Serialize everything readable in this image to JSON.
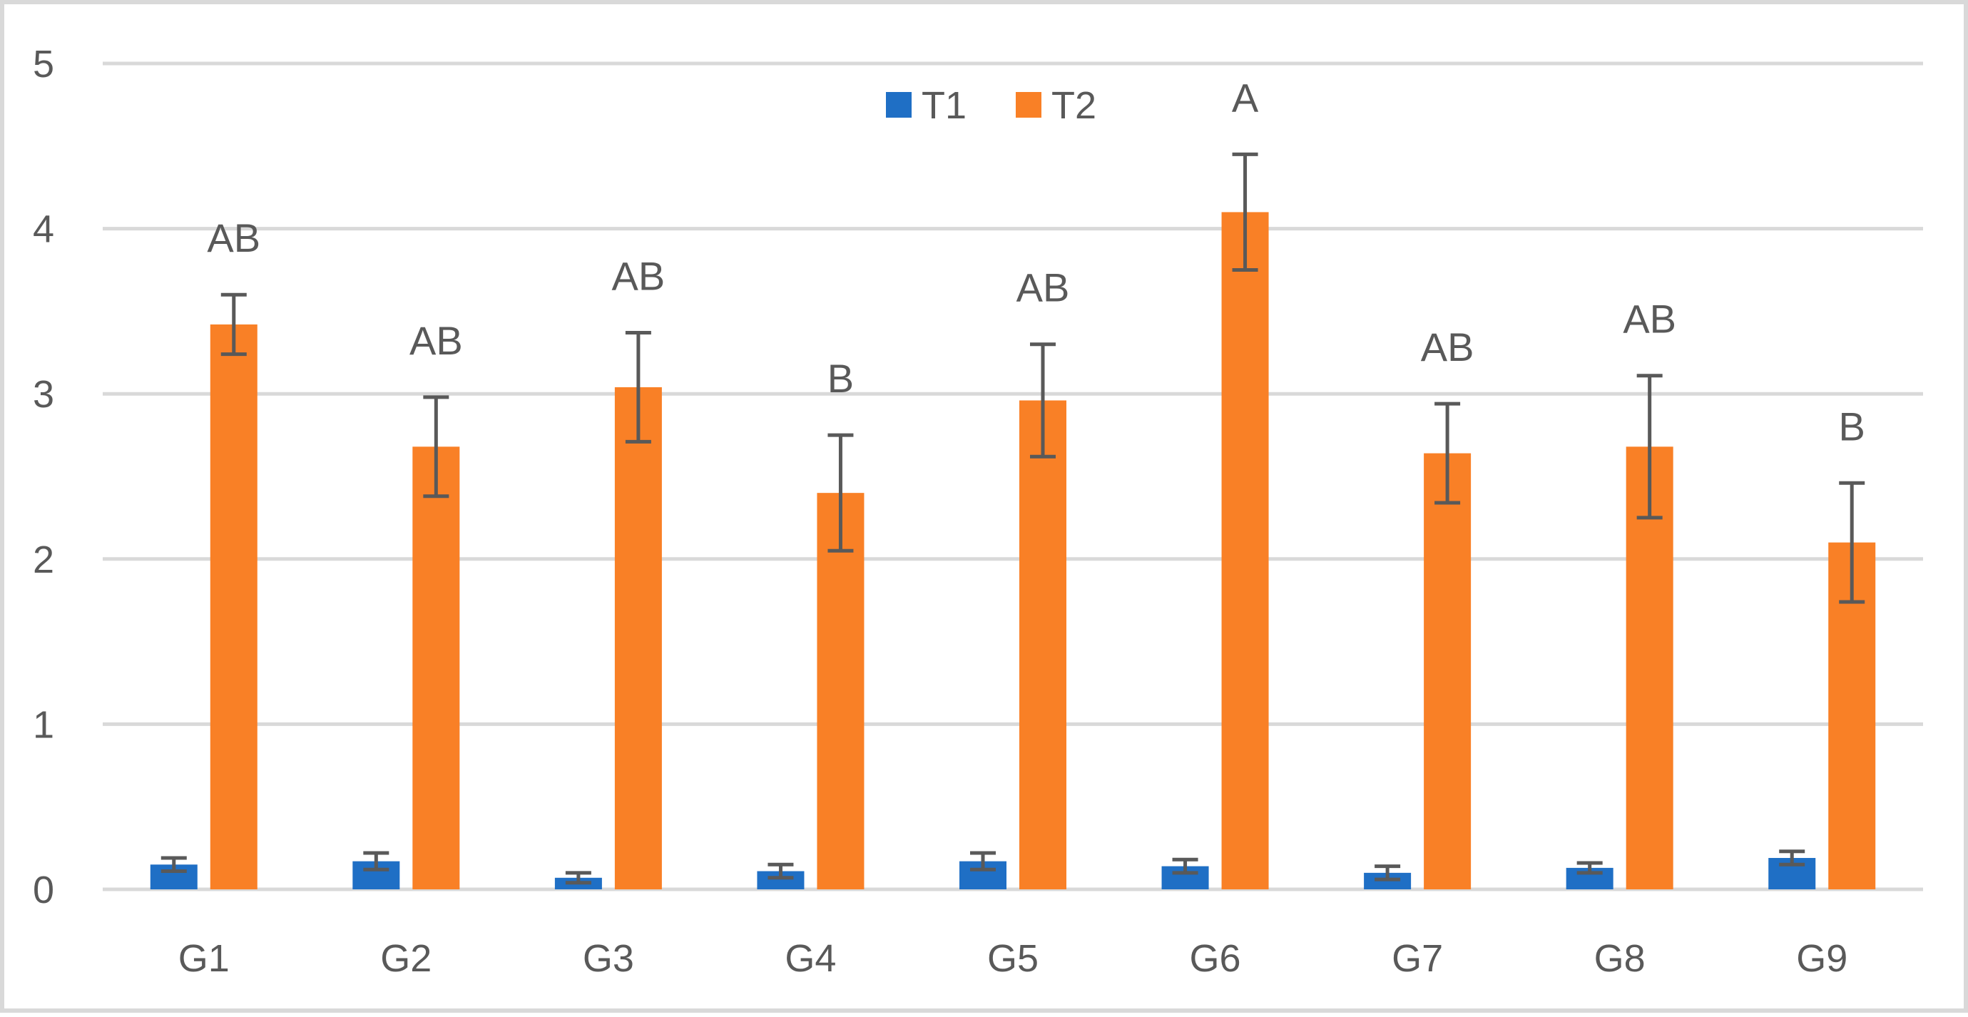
{
  "chart_data": {
    "type": "bar",
    "title": "",
    "xlabel": "",
    "ylabel": "",
    "categories": [
      "G1",
      "G2",
      "G3",
      "G4",
      "G5",
      "G6",
      "G7",
      "G8",
      "G9"
    ],
    "ylim": [
      0,
      5
    ],
    "yticks": [
      0,
      1,
      2,
      3,
      4,
      5
    ],
    "grid": true,
    "legend_position": "top-center",
    "series": [
      {
        "name": "T1",
        "color": "#1f6fc5",
        "values": [
          0.15,
          0.17,
          0.07,
          0.11,
          0.17,
          0.14,
          0.1,
          0.13,
          0.19
        ],
        "errors": [
          0.04,
          0.05,
          0.03,
          0.04,
          0.05,
          0.04,
          0.04,
          0.03,
          0.04
        ]
      },
      {
        "name": "T2",
        "color": "#f98026",
        "values": [
          3.42,
          2.68,
          3.04,
          2.4,
          2.96,
          4.1,
          2.64,
          2.68,
          2.1
        ],
        "errors": [
          0.18,
          0.3,
          0.33,
          0.35,
          0.34,
          0.35,
          0.3,
          0.43,
          0.36
        ]
      }
    ],
    "annotations": [
      "AB",
      "AB",
      "AB",
      "B",
      "AB",
      "A",
      "AB",
      "AB",
      "B"
    ]
  }
}
